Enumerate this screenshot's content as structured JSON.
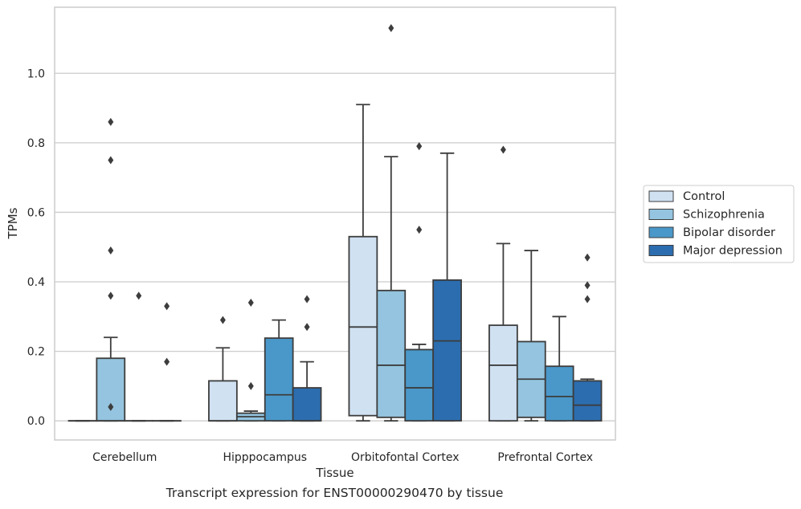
{
  "caption": "Transcript expression for ENST00000290470 by tissue",
  "chart_data": {
    "type": "box",
    "xlabel": "Tissue",
    "ylabel": "TPMs",
    "ylim": [
      -0.055,
      1.19
    ],
    "yticks": [
      0.0,
      0.2,
      0.4,
      0.6,
      0.8,
      1.0
    ],
    "ytick_labels": [
      "0.0",
      "0.2",
      "0.4",
      "0.6",
      "0.8",
      "1.0"
    ],
    "grid": "horizontal",
    "legend_position": "right",
    "categories": [
      "Cerebellum",
      "Hipppocampus",
      "Orbitofontal Cortex",
      "Prefrontal Cortex"
    ],
    "series": [
      {
        "name": "Control",
        "color": "#d0e1f2",
        "boxes": [
          {
            "q1": 0.0,
            "median": 0.0,
            "q3": 0.0,
            "whisker_low": 0.0,
            "whisker_high": 0.0,
            "outliers": []
          },
          {
            "q1": 0.0,
            "median": 0.0,
            "q3": 0.115,
            "whisker_low": 0.0,
            "whisker_high": 0.21,
            "outliers": [
              0.29
            ]
          },
          {
            "q1": 0.015,
            "median": 0.27,
            "q3": 0.53,
            "whisker_low": 0.0,
            "whisker_high": 0.91,
            "outliers": []
          },
          {
            "q1": 0.0,
            "median": 0.16,
            "q3": 0.275,
            "whisker_low": 0.0,
            "whisker_high": 0.51,
            "outliers": [
              0.78
            ]
          }
        ]
      },
      {
        "name": "Schizophrenia",
        "color": "#94c4df",
        "boxes": [
          {
            "q1": 0.0,
            "median": 0.0,
            "q3": 0.18,
            "whisker_low": 0.0,
            "whisker_high": 0.24,
            "outliers": [
              0.36,
              0.04,
              0.49,
              0.75,
              0.86
            ]
          },
          {
            "q1": 0.0,
            "median": 0.012,
            "q3": 0.022,
            "whisker_low": 0.0,
            "whisker_high": 0.028,
            "outliers": [
              0.1,
              0.34
            ]
          },
          {
            "q1": 0.01,
            "median": 0.16,
            "q3": 0.375,
            "whisker_low": 0.0,
            "whisker_high": 0.76,
            "outliers": [
              1.13
            ]
          },
          {
            "q1": 0.01,
            "median": 0.12,
            "q3": 0.228,
            "whisker_low": 0.0,
            "whisker_high": 0.49,
            "outliers": []
          }
        ]
      },
      {
        "name": "Bipolar disorder",
        "color": "#4a98c9",
        "boxes": [
          {
            "q1": 0.0,
            "median": 0.0,
            "q3": 0.0,
            "whisker_low": 0.0,
            "whisker_high": 0.0,
            "outliers": [
              0.36
            ]
          },
          {
            "q1": 0.0,
            "median": 0.075,
            "q3": 0.238,
            "whisker_low": 0.0,
            "whisker_high": 0.29,
            "outliers": []
          },
          {
            "q1": 0.0,
            "median": 0.095,
            "q3": 0.205,
            "whisker_low": 0.0,
            "whisker_high": 0.22,
            "outliers": [
              0.55,
              0.79
            ]
          },
          {
            "q1": 0.0,
            "median": 0.07,
            "q3": 0.157,
            "whisker_low": 0.0,
            "whisker_high": 0.3,
            "outliers": []
          }
        ]
      },
      {
        "name": "Major depression",
        "color": "#2c6daf",
        "boxes": [
          {
            "q1": 0.0,
            "median": 0.0,
            "q3": 0.0,
            "whisker_low": 0.0,
            "whisker_high": 0.0,
            "outliers": [
              0.17,
              0.33
            ]
          },
          {
            "q1": 0.0,
            "median": 0.0,
            "q3": 0.095,
            "whisker_low": 0.0,
            "whisker_high": 0.17,
            "outliers": [
              0.27,
              0.35
            ]
          },
          {
            "q1": 0.0,
            "median": 0.23,
            "q3": 0.405,
            "whisker_low": 0.0,
            "whisker_high": 0.77,
            "outliers": []
          },
          {
            "q1": 0.0,
            "median": 0.045,
            "q3": 0.115,
            "whisker_low": 0.0,
            "whisker_high": 0.12,
            "outliers": [
              0.35,
              0.39,
              0.47
            ]
          }
        ]
      }
    ]
  }
}
